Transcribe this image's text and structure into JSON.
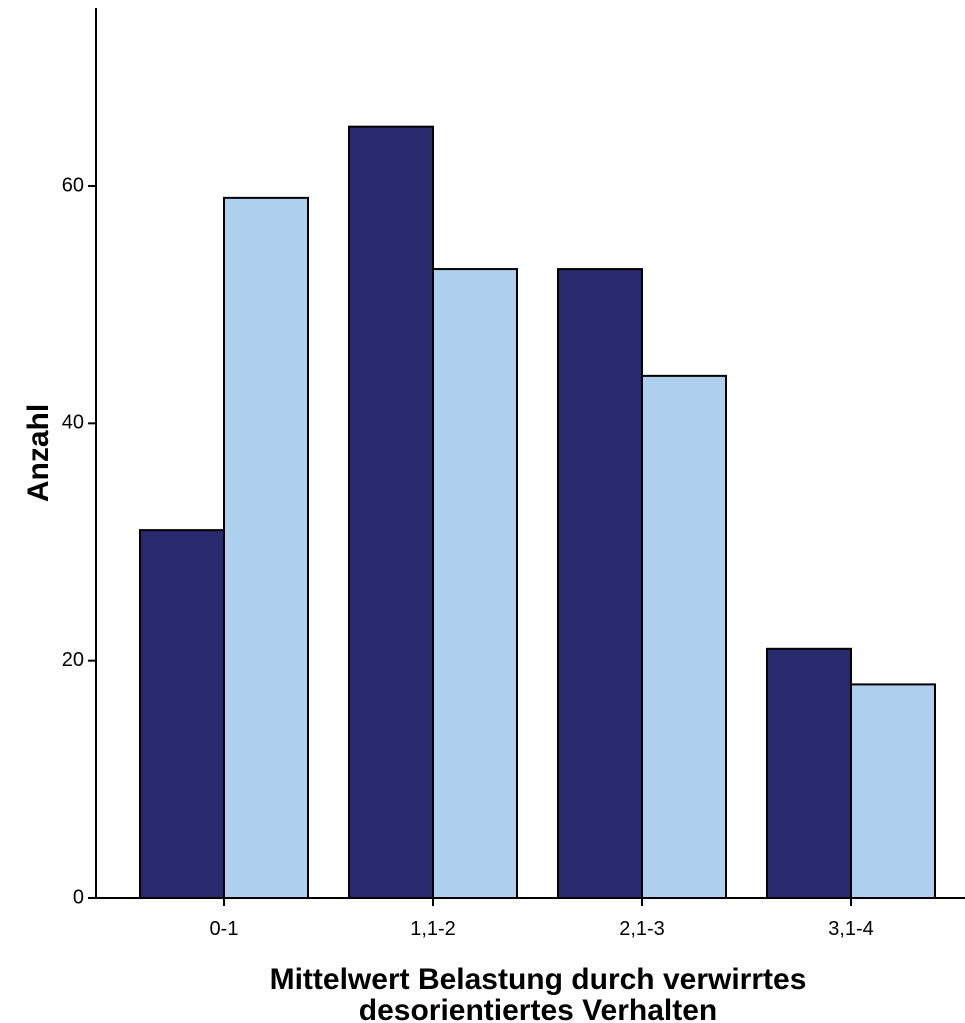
{
  "chart_data": {
    "type": "bar",
    "title": "",
    "categories": [
      "0-1",
      "1,1-2",
      "2,1-3",
      "3,1-4"
    ],
    "series": [
      {
        "color": "#29296e",
        "values": [
          31,
          65,
          53,
          21
        ]
      },
      {
        "color": "#aed0ee",
        "values": [
          59,
          53,
          44,
          18
        ]
      }
    ],
    "ylabel": "Anzahl",
    "xlabel_lines": [
      "Mittelwert Belastung durch verwirrtes",
      "desorientiertes Verhalten"
    ],
    "ylim": [
      0,
      75
    ],
    "yticks": [
      0,
      20,
      40,
      60
    ],
    "grid": false,
    "legend": "none"
  }
}
